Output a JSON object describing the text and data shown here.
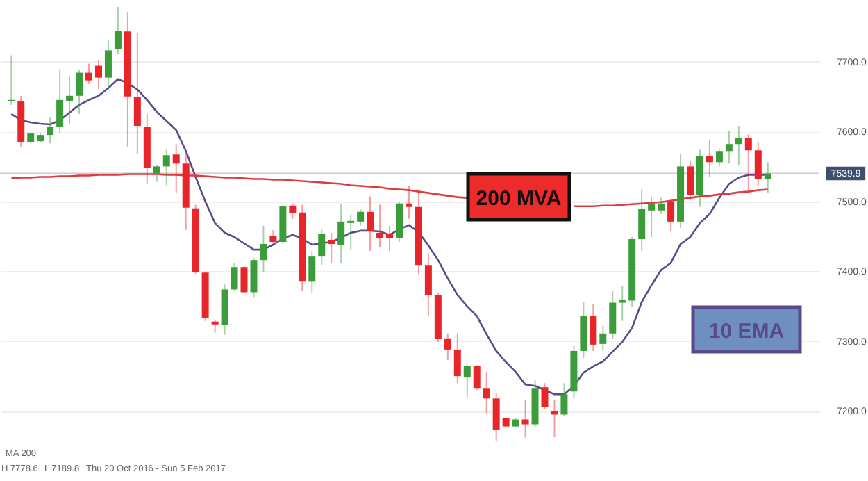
{
  "chart_data": {
    "type": "candlestick",
    "categories": [
      null,
      null,
      null,
      null,
      null,
      null,
      null,
      null,
      null,
      null,
      null,
      null,
      null,
      null,
      null,
      null,
      null,
      null,
      null,
      null,
      null,
      null,
      null,
      null,
      null,
      null,
      null,
      null,
      null,
      null,
      null,
      null,
      null,
      null,
      null,
      null,
      null,
      null,
      null,
      null,
      null,
      null,
      null,
      null,
      null,
      null,
      null,
      null,
      null,
      null,
      null,
      null,
      null,
      null,
      null,
      null,
      null,
      null,
      null,
      null,
      null,
      null,
      null,
      null,
      null,
      null,
      null,
      null,
      null,
      null,
      null,
      null,
      null,
      null,
      null,
      null,
      null,
      null,
      null
    ],
    "ohlc": [
      [
        7643,
        7709,
        7638,
        7645
      ],
      [
        7643,
        7651,
        7578,
        7585
      ],
      [
        7585,
        7598,
        7583,
        7597
      ],
      [
        7586,
        7598,
        7585,
        7595
      ],
      [
        7595,
        7621,
        7583,
        7607
      ],
      [
        7607,
        7689,
        7598,
        7645
      ],
      [
        7643,
        7678,
        7611,
        7651
      ],
      [
        7651,
        7688,
        7625,
        7684
      ],
      [
        7684,
        7697,
        7668,
        7673
      ],
      [
        7694,
        7702,
        7661,
        7677
      ],
      [
        7677,
        7731,
        7661,
        7716
      ],
      [
        7718,
        7778,
        7711,
        7744
      ],
      [
        7743,
        7771,
        7578,
        7650
      ],
      [
        7649,
        7741,
        7568,
        7608
      ],
      [
        7607,
        7625,
        7525,
        7548
      ],
      [
        7540,
        7552,
        7528,
        7550
      ],
      [
        7550,
        7574,
        7523,
        7566
      ],
      [
        7567,
        7582,
        7512,
        7554
      ],
      [
        7554,
        7568,
        7459,
        7491
      ],
      [
        7490,
        7495,
        7396,
        7399
      ],
      [
        7398,
        7399,
        7329,
        7333
      ],
      [
        7328,
        7331,
        7312,
        7324
      ],
      [
        7323,
        7381,
        7309,
        7374
      ],
      [
        7374,
        7412,
        7372,
        7406
      ],
      [
        7406,
        7408,
        7369,
        7370
      ],
      [
        7370,
        7419,
        7362,
        7416
      ],
      [
        7416,
        7465,
        7399,
        7439
      ],
      [
        7451,
        7459,
        7439,
        7442
      ],
      [
        7442,
        7495,
        7439,
        7493
      ],
      [
        7494,
        7497,
        7475,
        7483
      ],
      [
        7484,
        7495,
        7372,
        7386
      ],
      [
        7386,
        7429,
        7369,
        7421
      ],
      [
        7421,
        7460,
        7409,
        7453
      ],
      [
        7445,
        7455,
        7412,
        7439
      ],
      [
        7438,
        7497,
        7412,
        7471
      ],
      [
        7469,
        7481,
        7430,
        7472
      ],
      [
        7471,
        7489,
        7465,
        7485
      ],
      [
        7485,
        7507,
        7429,
        7457
      ],
      [
        7455,
        7495,
        7435,
        7448
      ],
      [
        7453,
        7465,
        7429,
        7447
      ],
      [
        7447,
        7499,
        7442,
        7497
      ],
      [
        7497,
        7522,
        7475,
        7492
      ],
      [
        7492,
        7515,
        7396,
        7409
      ],
      [
        7409,
        7426,
        7336,
        7366
      ],
      [
        7366,
        7369,
        7299,
        7303
      ],
      [
        7304,
        7311,
        7273,
        7288
      ],
      [
        7288,
        7311,
        7240,
        7250
      ],
      [
        7248,
        7266,
        7220,
        7265
      ],
      [
        7265,
        7266,
        7230,
        7233
      ],
      [
        7233,
        7256,
        7197,
        7218
      ],
      [
        7218,
        7226,
        7157,
        7173
      ],
      [
        7190,
        7191,
        7177,
        7178
      ],
      [
        7178,
        7190,
        7177,
        7188
      ],
      [
        7188,
        7216,
        7162,
        7181
      ],
      [
        7181,
        7244,
        7177,
        7233
      ],
      [
        7234,
        7240,
        7203,
        7206
      ],
      [
        7200,
        7216,
        7163,
        7195
      ],
      [
        7195,
        7240,
        7193,
        7224
      ],
      [
        7228,
        7293,
        7218,
        7286
      ],
      [
        7286,
        7356,
        7276,
        7336
      ],
      [
        7336,
        7353,
        7286,
        7295
      ],
      [
        7296,
        7323,
        7286,
        7311
      ],
      [
        7311,
        7372,
        7303,
        7355
      ],
      [
        7355,
        7379,
        7329,
        7359
      ],
      [
        7358,
        7449,
        7349,
        7446
      ],
      [
        7446,
        7517,
        7429,
        7489
      ],
      [
        7487,
        7507,
        7449,
        7497
      ],
      [
        7487,
        7505,
        7482,
        7497
      ],
      [
        7500,
        7502,
        7457,
        7471
      ],
      [
        7471,
        7568,
        7462,
        7550
      ],
      [
        7550,
        7558,
        7502,
        7509
      ],
      [
        7509,
        7574,
        7492,
        7565
      ],
      [
        7565,
        7588,
        7535,
        7556
      ],
      [
        7556,
        7574,
        7550,
        7572
      ],
      [
        7572,
        7601,
        7554,
        7582
      ],
      [
        7582,
        7608,
        7552,
        7591
      ],
      [
        7591,
        7596,
        7515,
        7573
      ],
      [
        7573,
        7585,
        7522,
        7532
      ],
      [
        7532,
        7556,
        7512,
        7539.9
      ]
    ],
    "colors": [
      "#3a9d3a",
      "#e8262a",
      "#3a9d3a",
      "#3a9d3a",
      "#3a9d3a",
      "#3a9d3a",
      "#3a9d3a",
      "#3a9d3a",
      "#e8262a",
      "#e8262a",
      "#3a9d3a",
      "#3a9d3a",
      "#e8262a",
      "#e8262a",
      "#e8262a",
      "#3a9d3a",
      "#3a9d3a",
      "#e8262a",
      "#e8262a",
      "#e8262a",
      "#e8262a",
      "#e8262a",
      "#3a9d3a",
      "#3a9d3a",
      "#e8262a",
      "#3a9d3a",
      "#3a9d3a",
      "#e8262a",
      "#3a9d3a",
      "#e8262a",
      "#e8262a",
      "#3a9d3a",
      "#3a9d3a",
      "#e8262a",
      "#3a9d3a",
      "#3a9d3a",
      "#3a9d3a",
      "#e8262a",
      "#e8262a",
      "#e8262a",
      "#3a9d3a",
      "#e8262a",
      "#e8262a",
      "#e8262a",
      "#e8262a",
      "#e8262a",
      "#e8262a",
      "#3a9d3a",
      "#e8262a",
      "#e8262a",
      "#e8262a",
      "#e8262a",
      "#3a9d3a",
      "#e8262a",
      "#3a9d3a",
      "#e8262a",
      "#e8262a",
      "#3a9d3a",
      "#3a9d3a",
      "#3a9d3a",
      "#e8262a",
      "#3a9d3a",
      "#3a9d3a",
      "#3a9d3a",
      "#3a9d3a",
      "#3a9d3a",
      "#3a9d3a",
      "#3a9d3a",
      "#e8262a",
      "#3a9d3a",
      "#e8262a",
      "#3a9d3a",
      "#e8262a",
      "#3a9d3a",
      "#3a9d3a",
      "#3a9d3a",
      "#e8262a",
      "#e8262a",
      "#3a9d3a"
    ],
    "series": [
      {
        "name": "10 EMA",
        "type": "line",
        "color": "#5b4a8b",
        "values": [
          7625,
          7616,
          7613,
          7611,
          7610,
          7616,
          7627,
          7638,
          7645,
          7651,
          7662,
          7675,
          7669,
          7660,
          7645,
          7628,
          7615,
          7602,
          7572,
          7535,
          7500,
          7469,
          7455,
          7449,
          7440,
          7431,
          7431,
          7438,
          7447,
          7452,
          7447,
          7438,
          7440,
          7442,
          7448,
          7455,
          7458,
          7458,
          7457,
          7452,
          7460,
          7466,
          7456,
          7437,
          7416,
          7390,
          7366,
          7350,
          7336,
          7310,
          7286,
          7270,
          7256,
          7238,
          7236,
          7230,
          7224,
          7224,
          7236,
          7255,
          7264,
          7271,
          7285,
          7299,
          7319,
          7356,
          7380,
          7402,
          7412,
          7439,
          7449,
          7469,
          7482,
          7505,
          7525,
          7534,
          7538,
          7538,
          7538
        ]
      },
      {
        "name": "200 MVA",
        "type": "line",
        "color": "#e0393e",
        "values": [
          7533,
          7534,
          7534,
          7535,
          7535,
          7536,
          7536,
          7537,
          7537,
          7538,
          7538,
          7538,
          7539,
          7539,
          7539,
          7539,
          7538,
          7538,
          7537,
          7537,
          7536,
          7535,
          7534,
          7534,
          7533,
          7532,
          7532,
          7531,
          7531,
          7530,
          7529,
          7528,
          7527,
          7526,
          7525,
          7523,
          7522,
          7521,
          7520,
          7518,
          7517,
          7516,
          7514,
          7512,
          7510,
          7508,
          7506,
          7505,
          null,
          null,
          null,
          null,
          null,
          null,
          null,
          null,
          null,
          null,
          7493,
          7493,
          7493,
          7494,
          7494,
          7495,
          7496,
          7497,
          7498,
          7499,
          7501,
          7503,
          7505,
          7507,
          7508,
          7510,
          7511,
          7513,
          7514,
          7516,
          7517
        ]
      }
    ],
    "ylim": [
      7100,
      7788
    ],
    "yticks": [
      {
        "value": 7200,
        "label": "7200.0"
      },
      {
        "value": 7300,
        "label": "7300.0"
      },
      {
        "value": 7400,
        "label": "7400.0"
      },
      {
        "value": 7500,
        "label": "7500.0"
      },
      {
        "value": 7600,
        "label": "7600.0"
      },
      {
        "value": 7700,
        "label": "7700.0"
      }
    ],
    "ref_lines": [
      {
        "axis": "y",
        "value": 7539.9,
        "label": "7539.9",
        "color": "#c9cdd6"
      }
    ],
    "grid": "y",
    "annotations": [
      "MA 200",
      "H 7778.6",
      "L 7189.8",
      "Thu 20 Oct 2016 - Sun 5 Feb 2017"
    ]
  }
}
